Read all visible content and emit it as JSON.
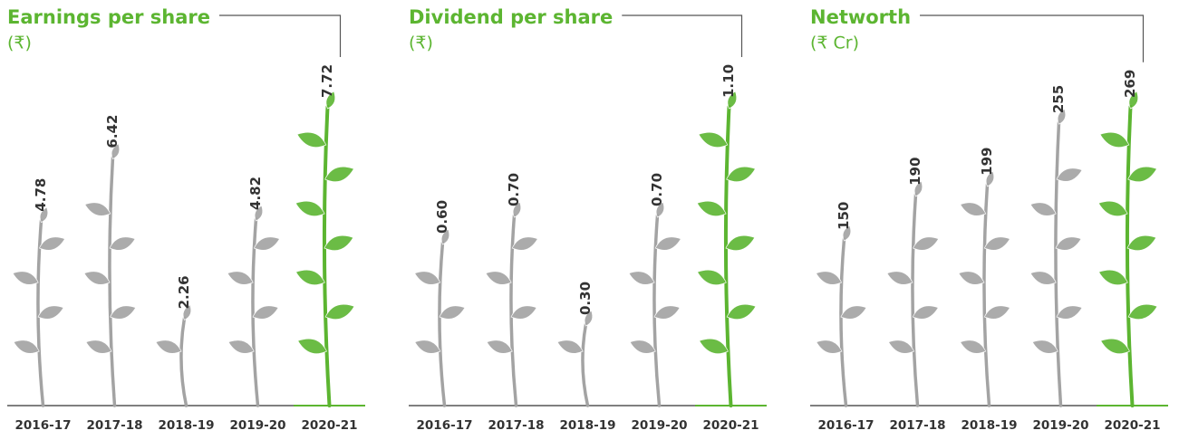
{
  "chart_data": [
    {
      "type": "bar",
      "title": "Earnings per share",
      "subtitle": "(₹)",
      "categories": [
        "2016-17",
        "2017-18",
        "2018-19",
        "2019-20",
        "2020-21"
      ],
      "values": [
        4.78,
        6.42,
        2.26,
        4.82,
        7.72
      ],
      "color": "#a3a3a3",
      "highlight_color": "#5cb531"
    },
    {
      "type": "bar",
      "title": "Dividend per share",
      "subtitle": "(₹)",
      "categories": [
        "2016-17",
        "2017-18",
        "2018-19",
        "2019-20",
        "2020-21"
      ],
      "values": [
        0.6,
        0.7,
        0.3,
        0.7,
        1.1
      ],
      "value_labels": [
        "0.60",
        "0.70",
        "0.30",
        "0.70",
        "1.10"
      ],
      "color": "#a3a3a3",
      "highlight_color": "#5cb531"
    },
    {
      "type": "bar",
      "title": "Networth",
      "subtitle": "(₹ Cr)",
      "categories": [
        "2016-17",
        "2017-18",
        "2018-19",
        "2019-20",
        "2020-21"
      ],
      "values": [
        150,
        190,
        199,
        255,
        269
      ],
      "color": "#a3a3a3",
      "highlight_color": "#5cb531"
    }
  ]
}
